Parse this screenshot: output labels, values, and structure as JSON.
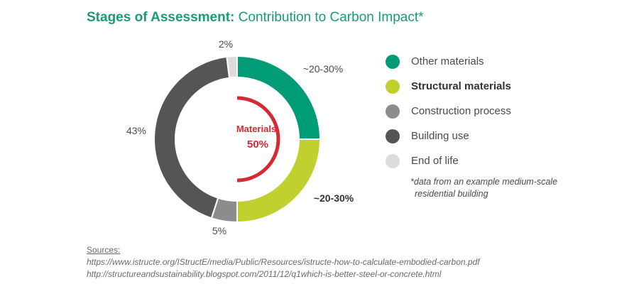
{
  "title": {
    "bold_part": "Stages of Assessment:",
    "rest": " Contribution to Carbon Impact*"
  },
  "chart_data": {
    "type": "pie",
    "variant": "donut",
    "title": "Stages of Assessment: Contribution to Carbon Impact*",
    "series": [
      {
        "name": "Other materials",
        "value": 25,
        "label": "~20-30%",
        "color": "#009b77",
        "label_bold": false
      },
      {
        "name": "Structural materials",
        "value": 25,
        "label": "~20-30%",
        "color": "#c0d02f",
        "label_bold": true
      },
      {
        "name": "Construction process",
        "value": 5,
        "label": "5%",
        "color": "#8c8c8c",
        "label_bold": false
      },
      {
        "name": "Building use",
        "value": 43,
        "label": "43%",
        "color": "#555555",
        "label_bold": false
      },
      {
        "name": "End of life",
        "value": 2,
        "label": "2%",
        "color": "#dcdcdc",
        "label_bold": false
      }
    ],
    "center": {
      "label": "Materials",
      "value": "50%",
      "fraction": 0.5,
      "color": "#d42a34"
    },
    "legend_position": "right"
  },
  "footnote": {
    "line1": "*data from an example medium-scale",
    "line2": "residential building"
  },
  "sources": {
    "heading": "Sources:",
    "links": [
      "https://www.istructe.org/IStructE/media/Public/Resources/istructe-how-to-calculate-embodied-carbon.pdf",
      "http://structureandsustainability.blogspot.com/2011/12/q1which-is-better-steel-or-concrete.html"
    ]
  }
}
